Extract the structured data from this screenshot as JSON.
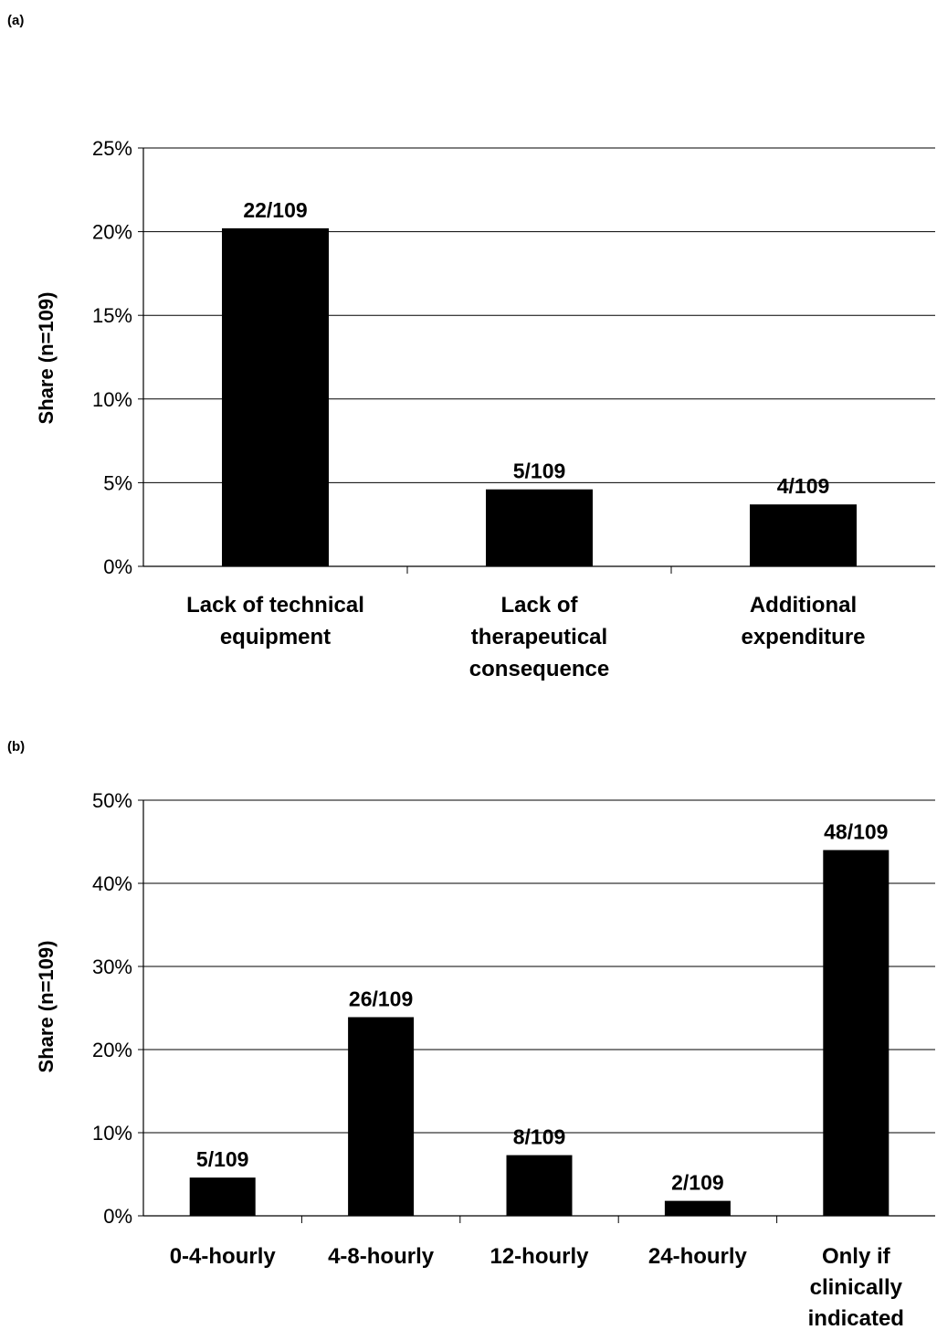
{
  "chart_data": [
    {
      "type": "bar",
      "panel_label": "(a)",
      "ylabel": "Share (n=109)",
      "ylim": [
        0,
        25
      ],
      "y_ticks": [
        "0%",
        "5%",
        "10%",
        "15%",
        "20%",
        "25%"
      ],
      "grid": true,
      "categories": [
        [
          "Lack of technical",
          "equipment"
        ],
        [
          "Lack of",
          "therapeutical",
          "consequence"
        ],
        [
          "Additional",
          "expenditure"
        ]
      ],
      "values": [
        20.2,
        4.6,
        3.7
      ],
      "data_labels": [
        "22/109",
        "5/109",
        "4/109"
      ],
      "bar_color": "#000000"
    },
    {
      "type": "bar",
      "panel_label": "(b)",
      "ylabel": "Share (n=109)",
      "ylim": [
        0,
        50
      ],
      "y_ticks": [
        "0%",
        "10%",
        "20%",
        "30%",
        "40%",
        "50%"
      ],
      "grid": true,
      "categories": [
        [
          "0-4-hourly"
        ],
        [
          "4-8-hourly"
        ],
        [
          "12-hourly"
        ],
        [
          "24-hourly"
        ],
        [
          "Only if",
          "clinically",
          "indicated"
        ]
      ],
      "values": [
        4.6,
        23.9,
        7.3,
        1.8,
        44.0
      ],
      "data_labels": [
        "5/109",
        "26/109",
        "8/109",
        "2/109",
        "48/109"
      ],
      "bar_color": "#000000"
    }
  ]
}
